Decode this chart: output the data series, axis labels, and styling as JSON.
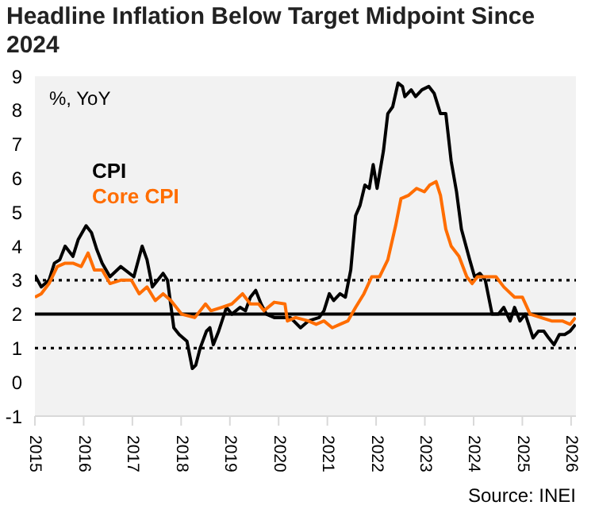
{
  "chart_data": {
    "type": "line",
    "title": "Headline Inflation Below Target Midpoint Since 2024",
    "ylabel": "%, YoY",
    "annotations": [
      "Source: INEI"
    ],
    "xlim": [
      2015,
      2026.1
    ],
    "xticks": [
      2015,
      2016,
      2017,
      2018,
      2019,
      2020,
      2021,
      2022,
      2023,
      2024,
      2025,
      2026
    ],
    "ylim": [
      -1,
      9
    ],
    "yticks": [
      -1,
      0,
      1,
      2,
      3,
      4,
      5,
      6,
      7,
      8,
      9
    ],
    "grid": false,
    "legend": "top left",
    "marker": "none",
    "line_style": "solid",
    "ref_lines": [
      {
        "axis": "y",
        "value": 1,
        "color": "#000000",
        "line_style": "dotted"
      },
      {
        "axis": "y",
        "value": 2,
        "color": "#000000",
        "line_style": "solid"
      },
      {
        "axis": "y",
        "value": 3,
        "color": "#000000",
        "line_style": "dotted"
      }
    ],
    "series": [
      {
        "name": "CPI",
        "color": "#000000",
        "x": [
          2015.0,
          2015.13,
          2015.29,
          2015.4,
          2015.51,
          2015.62,
          2015.78,
          2015.89,
          2016.05,
          2016.16,
          2016.27,
          2016.38,
          2016.54,
          2016.76,
          2017.03,
          2017.2,
          2017.3,
          2017.41,
          2017.52,
          2017.63,
          2017.72,
          2017.85,
          2017.96,
          2018.12,
          2018.23,
          2018.3,
          2018.39,
          2018.52,
          2018.59,
          2018.66,
          2018.77,
          2018.93,
          2019.04,
          2019.21,
          2019.32,
          2019.42,
          2019.53,
          2019.64,
          2019.75,
          2019.91,
          2020.02,
          2020.24,
          2020.45,
          2020.61,
          2020.83,
          2020.93,
          2021.04,
          2021.13,
          2021.26,
          2021.37,
          2021.48,
          2021.58,
          2021.67,
          2021.77,
          2021.86,
          2021.94,
          2022.02,
          2022.15,
          2022.24,
          2022.34,
          2022.45,
          2022.54,
          2022.59,
          2022.72,
          2022.81,
          2022.94,
          2023.08,
          2023.19,
          2023.32,
          2023.43,
          2023.54,
          2023.65,
          2023.75,
          2023.92,
          2024.02,
          2024.13,
          2024.24,
          2024.38,
          2024.51,
          2024.62,
          2024.75,
          2024.84,
          2024.95,
          2025.06,
          2025.22,
          2025.33,
          2025.44,
          2025.54,
          2025.65,
          2025.76,
          2025.87,
          2025.98,
          2026.09
        ],
        "values": [
          3.15,
          2.8,
          3.0,
          3.5,
          3.6,
          4.0,
          3.7,
          4.2,
          4.6,
          4.4,
          3.9,
          3.5,
          3.1,
          3.4,
          3.1,
          4.0,
          3.6,
          2.8,
          3.0,
          3.2,
          3.0,
          1.6,
          1.4,
          1.2,
          0.4,
          0.5,
          1.0,
          1.5,
          1.6,
          1.1,
          1.5,
          2.2,
          2.0,
          2.2,
          2.1,
          2.5,
          2.7,
          2.3,
          2.0,
          1.9,
          1.9,
          1.9,
          1.6,
          1.8,
          1.9,
          2.1,
          2.6,
          2.4,
          2.6,
          2.5,
          3.3,
          4.9,
          5.2,
          5.8,
          5.7,
          6.4,
          5.7,
          6.8,
          7.9,
          8.1,
          8.8,
          8.7,
          8.4,
          8.6,
          8.4,
          8.6,
          8.7,
          8.5,
          7.9,
          7.9,
          6.5,
          5.6,
          4.5,
          3.6,
          3.1,
          3.2,
          3.0,
          2.0,
          2.0,
          2.2,
          1.8,
          2.2,
          1.8,
          2.0,
          1.3,
          1.5,
          1.5,
          1.3,
          1.1,
          1.4,
          1.4,
          1.5,
          1.7
        ]
      },
      {
        "name": "Core CPI",
        "color": "#ff6d00",
        "x": [
          2015.0,
          2015.13,
          2015.29,
          2015.46,
          2015.62,
          2015.78,
          2015.95,
          2016.09,
          2016.22,
          2016.38,
          2016.54,
          2016.76,
          2016.98,
          2017.14,
          2017.3,
          2017.47,
          2017.63,
          2017.79,
          2018.01,
          2018.28,
          2018.5,
          2018.61,
          2018.83,
          2019.04,
          2019.26,
          2019.42,
          2019.59,
          2019.7,
          2019.91,
          2020.13,
          2020.18,
          2020.35,
          2020.61,
          2020.77,
          2020.93,
          2021.1,
          2021.26,
          2021.42,
          2021.58,
          2021.75,
          2021.91,
          2022.07,
          2022.24,
          2022.4,
          2022.51,
          2022.67,
          2022.83,
          2022.99,
          2023.1,
          2023.23,
          2023.32,
          2023.43,
          2023.54,
          2023.7,
          2023.86,
          2023.97,
          2024.08,
          2024.24,
          2024.46,
          2024.62,
          2024.84,
          2025.0,
          2025.16,
          2025.38,
          2025.6,
          2025.82,
          2025.98,
          2026.09
        ],
        "values": [
          2.5,
          2.6,
          2.9,
          3.4,
          3.5,
          3.5,
          3.4,
          3.8,
          3.3,
          3.3,
          2.9,
          3.0,
          3.0,
          2.6,
          2.8,
          2.4,
          2.6,
          2.4,
          2.0,
          1.9,
          2.3,
          2.1,
          2.2,
          2.3,
          2.6,
          2.3,
          2.3,
          2.1,
          2.35,
          2.3,
          1.8,
          1.9,
          1.8,
          1.7,
          1.8,
          1.6,
          1.7,
          1.8,
          2.2,
          2.6,
          3.1,
          3.1,
          3.6,
          4.6,
          5.4,
          5.5,
          5.7,
          5.6,
          5.8,
          5.9,
          5.5,
          4.5,
          4.0,
          3.7,
          3.1,
          2.9,
          3.1,
          3.1,
          3.1,
          2.8,
          2.5,
          2.5,
          2.0,
          1.9,
          1.8,
          1.8,
          1.7,
          1.9
        ]
      }
    ]
  }
}
